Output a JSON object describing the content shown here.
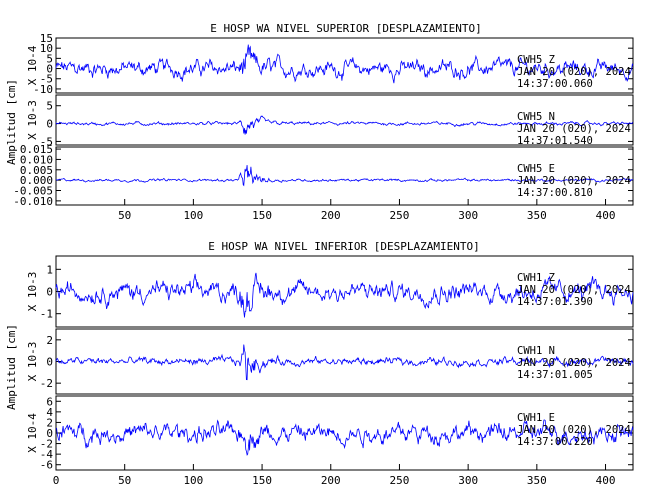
{
  "chart_data": [
    {
      "type": "line",
      "title": "E HOSP WA NIVEL SUPERIOR [DESPLAZAMIENTO]",
      "ylabel": "Amplitud [cm]",
      "xlim": [
        0,
        420
      ],
      "xticks": [
        "50",
        "100",
        "150",
        "200",
        "250",
        "300",
        "350",
        "400"
      ],
      "grid": false,
      "series": [
        {
          "name": "CWH5 Z",
          "station": "CWH5",
          "component": "Z",
          "date": "JAN 20 (020), 2024",
          "time": "14:37:00.060",
          "scale": "X 10-4",
          "ylim": [
            -12,
            15
          ],
          "yticks": [
            "15",
            "10",
            "5",
            "0",
            "-5",
            "-10"
          ],
          "amp": 5.0,
          "burst": 1.6
        },
        {
          "name": "CWH5 N",
          "station": "CWH5",
          "component": "N",
          "date": "JAN 20 (020), 2024",
          "time": "14:37:01.540",
          "scale": "X 10-3",
          "ylim": [
            -6,
            8
          ],
          "yticks": [
            "5",
            "0",
            "-5"
          ],
          "amp": 0.6,
          "burst": 8.0
        },
        {
          "name": "CWH5 E",
          "station": "CWH5",
          "component": "E",
          "date": "JAN 20 (020), 2024",
          "time": "14:37:00.810",
          "scale": "",
          "ylim": [
            -0.012,
            0.016
          ],
          "yticks": [
            "0.015",
            "0.010",
            "0.005",
            "0.000",
            "-0.005",
            "-0.010"
          ],
          "amp": 0.0008,
          "burst": 14.0
        }
      ]
    },
    {
      "type": "line",
      "title": "E HOSP WA NIVEL INFERIOR [DESPLAZAMIENTO]",
      "ylabel": "Amplitud [cm]",
      "xlim": [
        0,
        420
      ],
      "xticks": [
        "0",
        "50",
        "100",
        "150",
        "200",
        "250",
        "300",
        "350",
        "400"
      ],
      "grid": false,
      "series": [
        {
          "name": "CWH1 Z",
          "station": "CWH1",
          "component": "Z",
          "date": "JAN 20 (020), 2024",
          "time": "14:37:01.390",
          "scale": "X 10-3",
          "ylim": [
            -1.6,
            1.6
          ],
          "yticks": [
            "1",
            "0",
            "-1"
          ],
          "amp": 0.55,
          "burst": 1.8
        },
        {
          "name": "CWH1 N",
          "station": "CWH1",
          "component": "N",
          "date": "JAN 20 (020), 2024",
          "time": "14:37:01.005",
          "scale": "X 10-3",
          "ylim": [
            -3,
            3
          ],
          "yticks": [
            "2",
            "0",
            "-2"
          ],
          "amp": 0.45,
          "burst": 5.5
        },
        {
          "name": "CWH1 E",
          "station": "CWH1",
          "component": "E",
          "date": "JAN 20 (020), 2024",
          "time": "14:37:00.220",
          "scale": "X 10-4",
          "ylim": [
            -7,
            7
          ],
          "yticks": [
            "6",
            "4",
            "2",
            "0",
            "-2",
            "-4",
            "-6"
          ],
          "amp": 2.2,
          "burst": 1.3
        }
      ]
    }
  ],
  "colors": {
    "trace": "#0000ff",
    "axes": "#000000"
  }
}
